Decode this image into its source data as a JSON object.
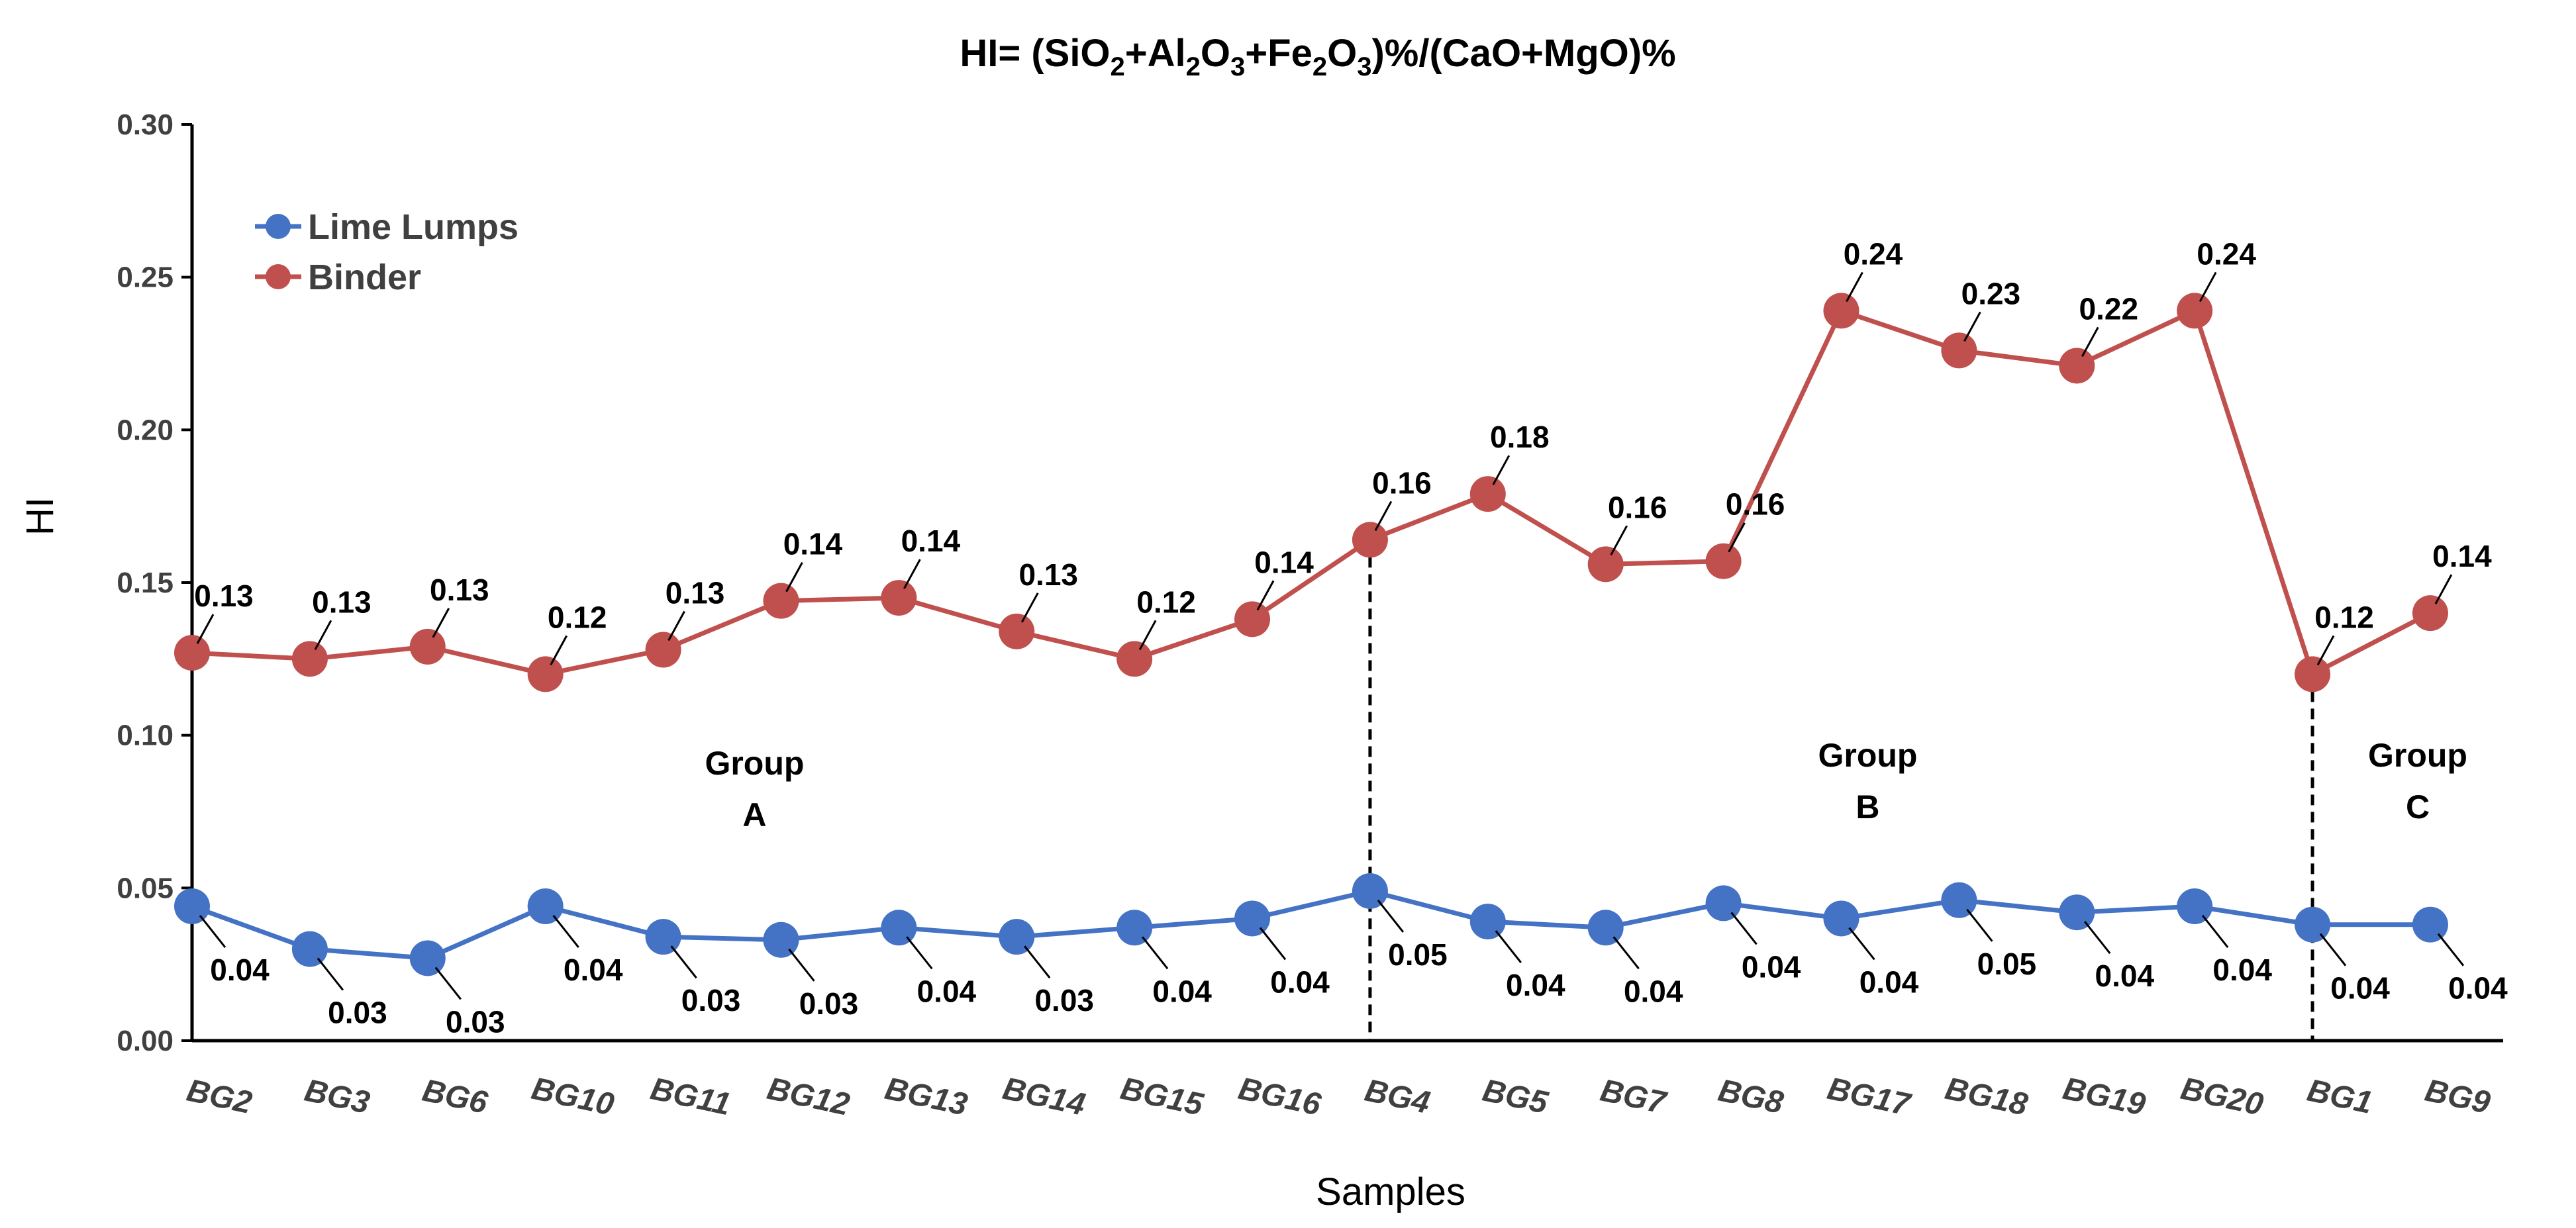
{
  "chart_data": {
    "type": "line",
    "title": {
      "parts": [
        {
          "text": "HI= (SiO",
          "sub": false
        },
        {
          "text": "2",
          "sub": true
        },
        {
          "text": "+Al",
          "sub": false
        },
        {
          "text": "2",
          "sub": true
        },
        {
          "text": "O",
          "sub": false
        },
        {
          "text": "3",
          "sub": true
        },
        {
          "text": "+Fe",
          "sub": false
        },
        {
          "text": "2",
          "sub": true
        },
        {
          "text": "O",
          "sub": false
        },
        {
          "text": "3",
          "sub": true
        },
        {
          "text": ")%/(CaO+MgO)%",
          "sub": false
        }
      ]
    },
    "xlabel": "Samples",
    "ylabel": "HI",
    "ylim": [
      0,
      0.3
    ],
    "yticks": [
      0.0,
      0.05,
      0.1,
      0.15,
      0.2,
      0.25,
      0.3
    ],
    "ytick_labels": [
      "0.00",
      "0.05",
      "0.10",
      "0.15",
      "0.20",
      "0.25",
      "0.30"
    ],
    "categories": [
      "BG2",
      "BG3",
      "BG6",
      "BG10",
      "BG11",
      "BG12",
      "BG13",
      "BG14",
      "BG15",
      "BG16",
      "BG4",
      "BG5",
      "BG7",
      "BG8",
      "BG17",
      "BG18",
      "BG19",
      "BG20",
      "BG1",
      "BG9"
    ],
    "series": [
      {
        "name": "Lime Lumps",
        "color": "#4472C4",
        "values": [
          0.044,
          0.03,
          0.027,
          0.044,
          0.034,
          0.033,
          0.037,
          0.034,
          0.037,
          0.04,
          0.049,
          0.039,
          0.037,
          0.045,
          0.04,
          0.046,
          0.042,
          0.044,
          0.038,
          0.038
        ],
        "labels": [
          "0.04",
          "0.03",
          "0.03",
          "0.04",
          "0.03",
          "0.03",
          "0.04",
          "0.03",
          "0.04",
          "0.04",
          "0.05",
          "0.04",
          "0.04",
          "0.04",
          "0.04",
          "0.05",
          "0.04",
          "0.04",
          "0.04",
          "0.04"
        ]
      },
      {
        "name": "Binder",
        "color": "#C0504D",
        "values": [
          0.127,
          0.125,
          0.129,
          0.12,
          0.128,
          0.144,
          0.145,
          0.134,
          0.125,
          0.138,
          0.164,
          0.179,
          0.156,
          0.157,
          0.239,
          0.226,
          0.221,
          0.239,
          0.12,
          0.14
        ],
        "labels": [
          "0.13",
          "0.13",
          "0.13",
          "0.12",
          "0.13",
          "0.14",
          "0.14",
          "0.13",
          "0.12",
          "0.14",
          "0.16",
          "0.18",
          "0.16",
          "0.16",
          "0.24",
          "0.23",
          "0.22",
          "0.24",
          "0.12",
          "0.14"
        ]
      }
    ],
    "legend": {
      "position": "top-left"
    },
    "grid": false,
    "group_dividers_after_index": [
      9,
      17
    ],
    "groups": [
      {
        "line1": "Group",
        "line2": "A"
      },
      {
        "line1": "Group",
        "line2": "B"
      },
      {
        "line1": "Group",
        "line2": "C"
      }
    ]
  }
}
